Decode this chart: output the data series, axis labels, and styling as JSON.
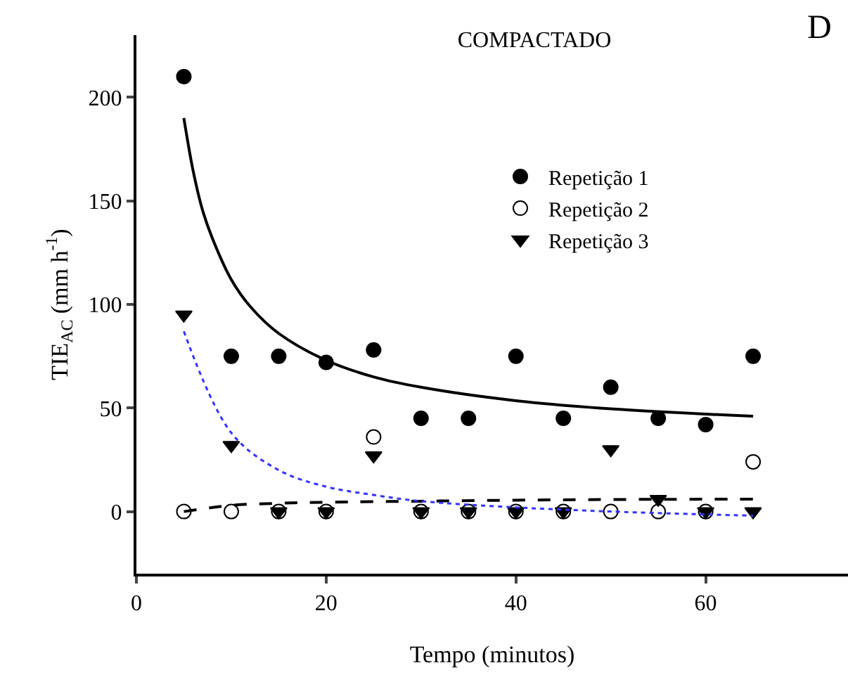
{
  "chart_data": {
    "type": "scatter",
    "title": "COMPACTADO",
    "xlabel": "Tempo (minutos)",
    "ylabel": "TIE$_{AC}$ (mm h$^{-1}$)",
    "annotations": [
      "D"
    ],
    "x": [
      5,
      10,
      15,
      20,
      25,
      30,
      35,
      40,
      45,
      50,
      55,
      60,
      65
    ],
    "series": [
      {
        "name": "Repetição 1",
        "color": "#000000",
        "marker": "circle",
        "values": [
          210,
          75,
          75,
          72,
          78,
          45,
          45,
          75,
          45,
          60,
          45,
          42,
          75
        ]
      },
      {
        "name": "Repetição 2",
        "color": "#ffffff",
        "marker": "circle",
        "values": [
          0,
          0,
          0,
          0,
          36,
          0,
          0,
          0,
          0,
          0,
          0,
          0,
          24
        ]
      },
      {
        "name": "Repetição 3",
        "color": "#000000",
        "marker": "triangle",
        "values": [
          95,
          32,
          0,
          0,
          27,
          0,
          0,
          0,
          0,
          30,
          6,
          0,
          0
        ]
      },
      {
        "type": "line",
        "color": "#000000",
        "line_style": "solid",
        "x": [
          5,
          6,
          7,
          8,
          10,
          12,
          15,
          20,
          25,
          30,
          40,
          50,
          65
        ],
        "values": [
          190,
          164,
          145,
          132,
          112,
          99,
          86,
          73,
          65,
          60,
          53.5,
          49.6,
          46
        ]
      },
      {
        "type": "line",
        "color": "#000000",
        "line_style": "dashed",
        "x": [
          5,
          10,
          15,
          20,
          30,
          40,
          50,
          65
        ],
        "values": [
          0,
          3,
          4,
          4.5,
          5,
          5.5,
          5.8,
          6
        ]
      },
      {
        "type": "line",
        "color": "#3333ff",
        "line_style": "dotted",
        "x": [
          5,
          10,
          15,
          20,
          25,
          30,
          40,
          50,
          65
        ],
        "values": [
          87,
          38,
          20,
          12,
          8,
          5,
          2,
          0,
          -2
        ]
      }
    ],
    "xlim": [
      0,
      75
    ],
    "xticks": [
      0,
      20,
      40,
      60
    ],
    "ylim": [
      -30,
      230
    ],
    "yticks": [
      0,
      50,
      100,
      150,
      200
    ],
    "legend": "top"
  }
}
